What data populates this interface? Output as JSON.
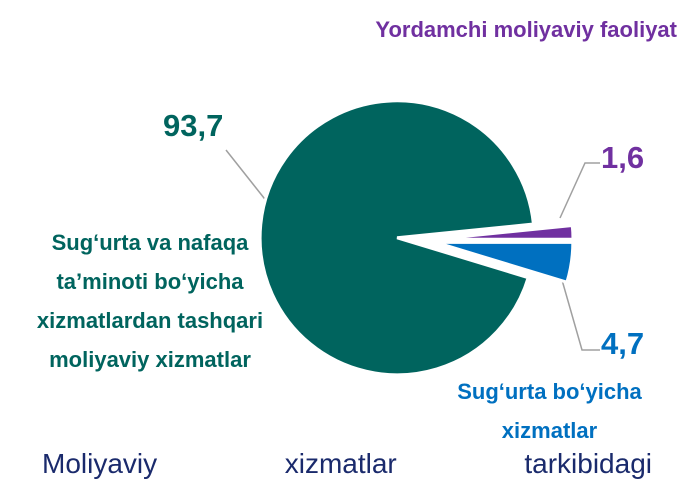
{
  "chart_data": {
    "type": "pie",
    "title": "Moliyaviy xizmatlar tarkibidagi",
    "categories": [
      "Sug‘urta bo‘yicha xizmatlar",
      "Sug‘urta va nafaqa ta’minoti bo‘yicha xizmatlardan tashqari moliyaviy xizmatlar",
      "Yordamchi moliyaviy faoliyat"
    ],
    "values": [
      4.7,
      93.7,
      1.6
    ],
    "value_labels": [
      "4,7",
      "93,7",
      "1,6"
    ],
    "colors": [
      "#0070c0",
      "#00645e",
      "#7030a0"
    ]
  }
}
